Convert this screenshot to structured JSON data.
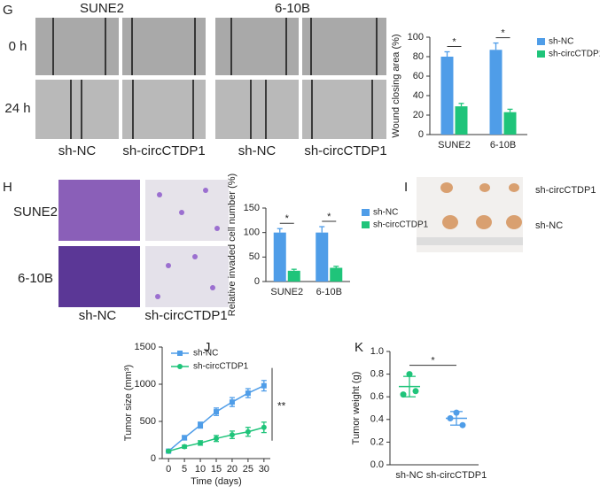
{
  "chart_data": [
    {
      "type": "bar",
      "panel": "G",
      "ylabel": "Wound closing area (%)",
      "categories": [
        "SUNE2",
        "6-10B"
      ],
      "series": [
        {
          "name": "sh-NC",
          "color": "#4f9de8",
          "values": [
            80,
            87
          ],
          "errors": [
            5,
            7
          ]
        },
        {
          "name": "sh-circCTDP1",
          "color": "#1fc47a",
          "values": [
            29,
            23
          ],
          "errors": [
            3,
            3
          ]
        }
      ],
      "annotations": [
        "*",
        "*"
      ],
      "ylim": [
        0,
        100
      ],
      "yticks": [
        0,
        20,
        40,
        60,
        80,
        100
      ]
    },
    {
      "type": "bar",
      "panel": "H",
      "ylabel": "Relative invaded cell number (%)",
      "categories": [
        "SUNE2",
        "6-10B"
      ],
      "series": [
        {
          "name": "sh-NC",
          "color": "#4f9de8",
          "values": [
            100,
            100
          ],
          "errors": [
            8,
            12
          ]
        },
        {
          "name": "sh-circCTDP1",
          "color": "#1fc47a",
          "values": [
            22,
            28
          ],
          "errors": [
            3,
            3
          ]
        }
      ],
      "annotations": [
        "*",
        "*"
      ],
      "ylim": [
        0,
        150
      ],
      "yticks": [
        0,
        50,
        100,
        150
      ]
    },
    {
      "type": "line",
      "panel": "J",
      "xlabel": "Time (days)",
      "ylabel": "Tumor size (mm³)",
      "x": [
        0,
        5,
        10,
        15,
        20,
        25,
        30
      ],
      "series": [
        {
          "name": "sh-NC",
          "color": "#4f9de8",
          "marker": "square",
          "values": [
            100,
            280,
            450,
            630,
            760,
            880,
            980
          ],
          "errors": [
            10,
            30,
            40,
            50,
            60,
            60,
            70
          ]
        },
        {
          "name": "sh-circCTDP1",
          "color": "#1fc47a",
          "marker": "circle",
          "values": [
            100,
            160,
            210,
            270,
            320,
            360,
            420
          ],
          "errors": [
            10,
            20,
            30,
            40,
            50,
            60,
            70
          ]
        }
      ],
      "annotation": "**",
      "xlim": [
        -2,
        32
      ],
      "xticks": [
        0,
        5,
        10,
        15,
        20,
        25,
        30
      ],
      "ylim": [
        0,
        1500
      ],
      "yticks": [
        0,
        500,
        1000,
        1500
      ]
    },
    {
      "type": "dot",
      "panel": "K",
      "ylabel": "Tumor weight (g)",
      "categories": [
        "sh-NC",
        "sh-circCTDP1"
      ],
      "colors": [
        "#1fc47a",
        "#4f9de8"
      ],
      "points": [
        [
          0.8,
          0.62,
          0.65
        ],
        [
          0.46,
          0.41,
          0.35
        ]
      ],
      "means": [
        0.69,
        0.41
      ],
      "sds": [
        0.09,
        0.06
      ],
      "annotation": "*",
      "ylim": [
        0,
        1.0
      ],
      "yticks": [
        {
          "value": 0,
          "label": "0.0"
        },
        0.2,
        0.4,
        0.6,
        0.8,
        {
          "value": 1,
          "label": "1.0"
        }
      ]
    }
  ],
  "figure": {
    "G": {
      "letter": "G",
      "columns": [
        "SUNE2",
        "6-10B"
      ],
      "rows": [
        "0 h",
        "24 h"
      ],
      "groups": [
        "sh-NC",
        "sh-circCTDP1",
        "sh-NC",
        "sh-circCTDP1"
      ]
    },
    "H": {
      "letter": "H",
      "rows": [
        "SUNE2",
        "6-10B"
      ],
      "groups": [
        "sh-NC",
        "sh-circCTDP1"
      ]
    },
    "I": {
      "letter": "I",
      "rows": [
        "sh-circCTDP1",
        "sh-NC"
      ]
    },
    "J": {
      "letter": "J"
    },
    "K": {
      "letter": "K"
    }
  }
}
